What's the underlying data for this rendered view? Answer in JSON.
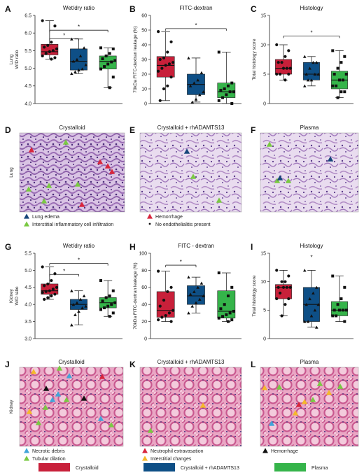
{
  "figure": {
    "colors": {
      "crystalloid": "#c8203a",
      "rhadamts13": "#0e4f86",
      "plasma": "#35b44a",
      "tri_blue": "#42a5d9",
      "tri_green": "#7ac943",
      "tri_red": "#d7263d",
      "tri_yellow": "#f5b82a",
      "tri_black": "#111111",
      "tri_navy": "#17467a"
    },
    "panels": {
      "A": {
        "letter": "A",
        "title": "Wet/dry ratio",
        "side_label": "Lung",
        "ylabel": "W/D ratio"
      },
      "B": {
        "letter": "B",
        "title": "FITC-dextran",
        "ylabel": "70kDa FITC-dextran leakage (%)"
      },
      "C": {
        "letter": "C",
        "title": "Histology",
        "ylabel": "Total histology score"
      },
      "D": {
        "letter": "D",
        "title": "Crystalloid",
        "side_label": "Lung"
      },
      "E": {
        "letter": "E",
        "title": "Crystalloid + rhADAMTS13"
      },
      "F": {
        "letter": "F",
        "title": "Plasma"
      },
      "G": {
        "letter": "G",
        "title": "Wet/dry ratio",
        "side_label": "Kidney",
        "ylabel": "W/D ratio"
      },
      "H": {
        "letter": "H",
        "title": "FITC - dextran",
        "ylabel": "70kDa FITC-dextran leakage (%)"
      },
      "I": {
        "letter": "I",
        "title": "Histology",
        "ylabel": "Total histology score"
      },
      "J": {
        "letter": "J",
        "title": "Crystalloid",
        "side_label": "Kidney"
      },
      "K": {
        "letter": "K",
        "title": "Crystalloid + rhADAMTS13"
      },
      "L": {
        "letter": "L",
        "title": "Plasma"
      }
    },
    "lung_legend": {
      "left": [
        "Lung edema",
        "Interstitial inflammatory cell infiltration"
      ],
      "right": [
        "Hemorrhage",
        "No endothelialitis present"
      ]
    },
    "kidney_legend": {
      "left": [
        "Necrotic debris",
        "Tubular dilation"
      ],
      "middle": [
        "Neutrophil extravasation",
        "Interstitial changes"
      ],
      "right": [
        "Hemorrhage"
      ]
    },
    "group_legend": [
      "Crystalloid",
      "Crystalloid + rhADAMTS13",
      "Plasma"
    ],
    "significance_mark": "*"
  },
  "chart_data": [
    {
      "panel": "A",
      "type": "box",
      "ylabel": "W/D ratio",
      "ylim": [
        4.0,
        6.5
      ],
      "yticks": [
        "4.0",
        "4.5",
        "5.0",
        "5.5",
        "6.0",
        "6.5"
      ],
      "series": [
        {
          "name": "Crystalloid",
          "q1": 5.38,
          "median": 5.47,
          "q3": 5.68,
          "whisker_low": 5.26,
          "whisker_high": 6.35,
          "points": [
            6.35,
            6.2,
            5.74,
            5.65,
            5.6,
            5.55,
            5.5,
            5.47,
            5.42,
            5.35,
            5.3,
            5.26
          ]
        },
        {
          "name": "Crystalloid + rhADAMTS13",
          "q1": 4.95,
          "median": 5.2,
          "q3": 5.55,
          "whisker_low": 4.85,
          "whisker_high": 5.83,
          "points": [
            5.83,
            5.58,
            5.35,
            5.25,
            5.2,
            5.1,
            4.98,
            4.95,
            4.9,
            4.85
          ]
        },
        {
          "name": "Plasma",
          "q1": 4.98,
          "median": 5.2,
          "q3": 5.35,
          "whisker_low": 4.45,
          "whisker_high": 5.58,
          "points": [
            5.58,
            5.55,
            5.42,
            5.35,
            5.27,
            5.22,
            5.18,
            5.12,
            5.05,
            4.98,
            4.75,
            4.45
          ]
        }
      ],
      "significance": [
        {
          "from": 0,
          "to": 1,
          "level": 5.84
        },
        {
          "from": 0,
          "to": 2,
          "level": 6.08
        }
      ]
    },
    {
      "panel": "B",
      "type": "box",
      "ylabel": "70kDa FITC-dextran leakage (%)",
      "ylim": [
        0,
        60
      ],
      "yticks": [
        "0",
        "10",
        "20",
        "30",
        "40",
        "50",
        "60"
      ],
      "series": [
        {
          "name": "Crystalloid",
          "q1": 18,
          "median": 26,
          "q3": 32,
          "whisker_low": 2,
          "whisker_high": 49,
          "points": [
            49,
            42,
            35,
            31,
            30,
            28,
            27,
            26,
            24,
            22,
            18,
            12,
            10,
            2
          ]
        },
        {
          "name": "Crystalloid + rhADAMTS13",
          "q1": 6,
          "median": 13,
          "q3": 20,
          "whisker_low": 1,
          "whisker_high": 31,
          "points": [
            31,
            21,
            16,
            14,
            12,
            8,
            6,
            3,
            1
          ]
        },
        {
          "name": "Plasma",
          "q1": 4,
          "median": 8,
          "q3": 14,
          "whisker_low": 0,
          "whisker_high": 35,
          "points": [
            35,
            14,
            12,
            10,
            9,
            8,
            8,
            6,
            4,
            2,
            0
          ]
        }
      ],
      "significance": [
        {
          "from": 0,
          "to": 2,
          "level": 51
        }
      ]
    },
    {
      "panel": "C",
      "type": "box",
      "ylabel": "Total histology score",
      "ylim": [
        0,
        15
      ],
      "yticks": [
        "0",
        "5",
        "10",
        "15"
      ],
      "series": [
        {
          "name": "Crystalloid",
          "q1": 5,
          "median": 6,
          "q3": 7.5,
          "whisker_low": 4,
          "whisker_high": 10,
          "points": [
            10,
            9,
            8,
            7,
            7,
            6,
            6,
            6,
            5,
            5,
            5,
            4
          ]
        },
        {
          "name": "Crystalloid + rhADAMTS13",
          "q1": 4,
          "median": 5,
          "q3": 7,
          "whisker_low": 3,
          "whisker_high": 8,
          "points": [
            8,
            7,
            7,
            6,
            5,
            5,
            5,
            4,
            4,
            3
          ]
        },
        {
          "name": "Plasma",
          "q1": 2.5,
          "median": 4,
          "q3": 5.5,
          "whisker_low": 1,
          "whisker_high": 9,
          "points": [
            9,
            8,
            7,
            6,
            5,
            5,
            4,
            4,
            3,
            3,
            2,
            2,
            1
          ]
        }
      ],
      "significance": [
        {
          "from": 0,
          "to": 2,
          "level": 11.5
        }
      ]
    },
    {
      "panel": "G",
      "type": "box",
      "ylabel": "W/D ratio",
      "ylim": [
        3.0,
        5.5
      ],
      "yticks": [
        "3.0",
        "3.5",
        "4.0",
        "4.5",
        "5.0",
        "5.5"
      ],
      "series": [
        {
          "name": "Crystalloid",
          "q1": 4.3,
          "median": 4.4,
          "q3": 4.6,
          "whisker_low": 4.15,
          "whisker_high": 5.1,
          "points": [
            5.1,
            4.9,
            4.7,
            4.6,
            4.55,
            4.5,
            4.45,
            4.4,
            4.38,
            4.35,
            4.3,
            4.25,
            4.2,
            4.15
          ]
        },
        {
          "name": "Crystalloid + rhADAMTS13",
          "q1": 3.85,
          "median": 4.0,
          "q3": 4.15,
          "whisker_low": 3.4,
          "whisker_high": 4.4,
          "points": [
            4.4,
            4.25,
            4.15,
            4.05,
            4.0,
            3.95,
            3.9,
            3.8,
            3.7,
            3.4
          ]
        },
        {
          "name": "Plasma",
          "q1": 3.9,
          "median": 4.05,
          "q3": 4.2,
          "whisker_low": 3.65,
          "whisker_high": 4.7,
          "points": [
            4.7,
            4.4,
            4.25,
            4.2,
            4.1,
            4.05,
            4.0,
            3.95,
            3.9,
            3.85,
            3.75,
            3.65
          ]
        }
      ],
      "significance": [
        {
          "from": 0,
          "to": 1,
          "level": 4.88
        },
        {
          "from": 0,
          "to": 2,
          "level": 5.2
        }
      ]
    },
    {
      "panel": "H",
      "type": "box",
      "ylabel": "70kDa FITC-dextran leakage (%)",
      "ylim": [
        0,
        100
      ],
      "yticks": [
        "0",
        "20",
        "40",
        "60",
        "80",
        "100"
      ],
      "series": [
        {
          "name": "Crystalloid",
          "q1": 25,
          "median": 33,
          "q3": 55,
          "whisker_low": 20,
          "whisker_high": 79,
          "points": [
            79,
            60,
            55,
            45,
            38,
            33,
            30,
            27,
            25,
            22,
            20
          ]
        },
        {
          "name": "Crystalloid + rhADAMTS13",
          "q1": 40,
          "median": 50,
          "q3": 62,
          "whisker_low": 30,
          "whisker_high": 72,
          "points": [
            72,
            65,
            60,
            55,
            52,
            50,
            46,
            42,
            38,
            30
          ]
        },
        {
          "name": "Plasma",
          "q1": 24,
          "median": 32,
          "q3": 56,
          "whisker_low": 20,
          "whisker_high": 77,
          "points": [
            77,
            60,
            50,
            40,
            35,
            32,
            30,
            28,
            26,
            24,
            22,
            20
          ]
        }
      ],
      "significance": [
        {
          "from": 0,
          "to": 1,
          "level": 86
        }
      ]
    },
    {
      "panel": "I",
      "type": "box",
      "ylabel": "Total histology score",
      "ylim": [
        0,
        15
      ],
      "yticks": [
        "0",
        "5",
        "10",
        "15"
      ],
      "series": [
        {
          "name": "Crystalloid",
          "q1": 7,
          "median": 9,
          "q3": 9.5,
          "whisker_low": 4,
          "whisker_high": 12,
          "points": [
            12,
            11,
            10,
            10,
            9,
            9,
            9,
            9,
            8,
            7,
            7,
            6,
            4
          ]
        },
        {
          "name": "Crystalloid + rhADAMTS13",
          "q1": 3,
          "median": 6,
          "q3": 9,
          "whisker_low": 2,
          "whisker_high": 12,
          "points": [
            12,
            9,
            8,
            7,
            6,
            6,
            5,
            4,
            3,
            3,
            2
          ]
        },
        {
          "name": "Plasma",
          "q1": 4,
          "median": 5,
          "q3": 6.5,
          "whisker_low": 3,
          "whisker_high": 11,
          "points": [
            11,
            9,
            7,
            6,
            5,
            5,
            5,
            5,
            4,
            4,
            3
          ]
        }
      ],
      "significance": [
        {
          "from": 1,
          "to": 1,
          "level": 14.2
        }
      ]
    }
  ]
}
